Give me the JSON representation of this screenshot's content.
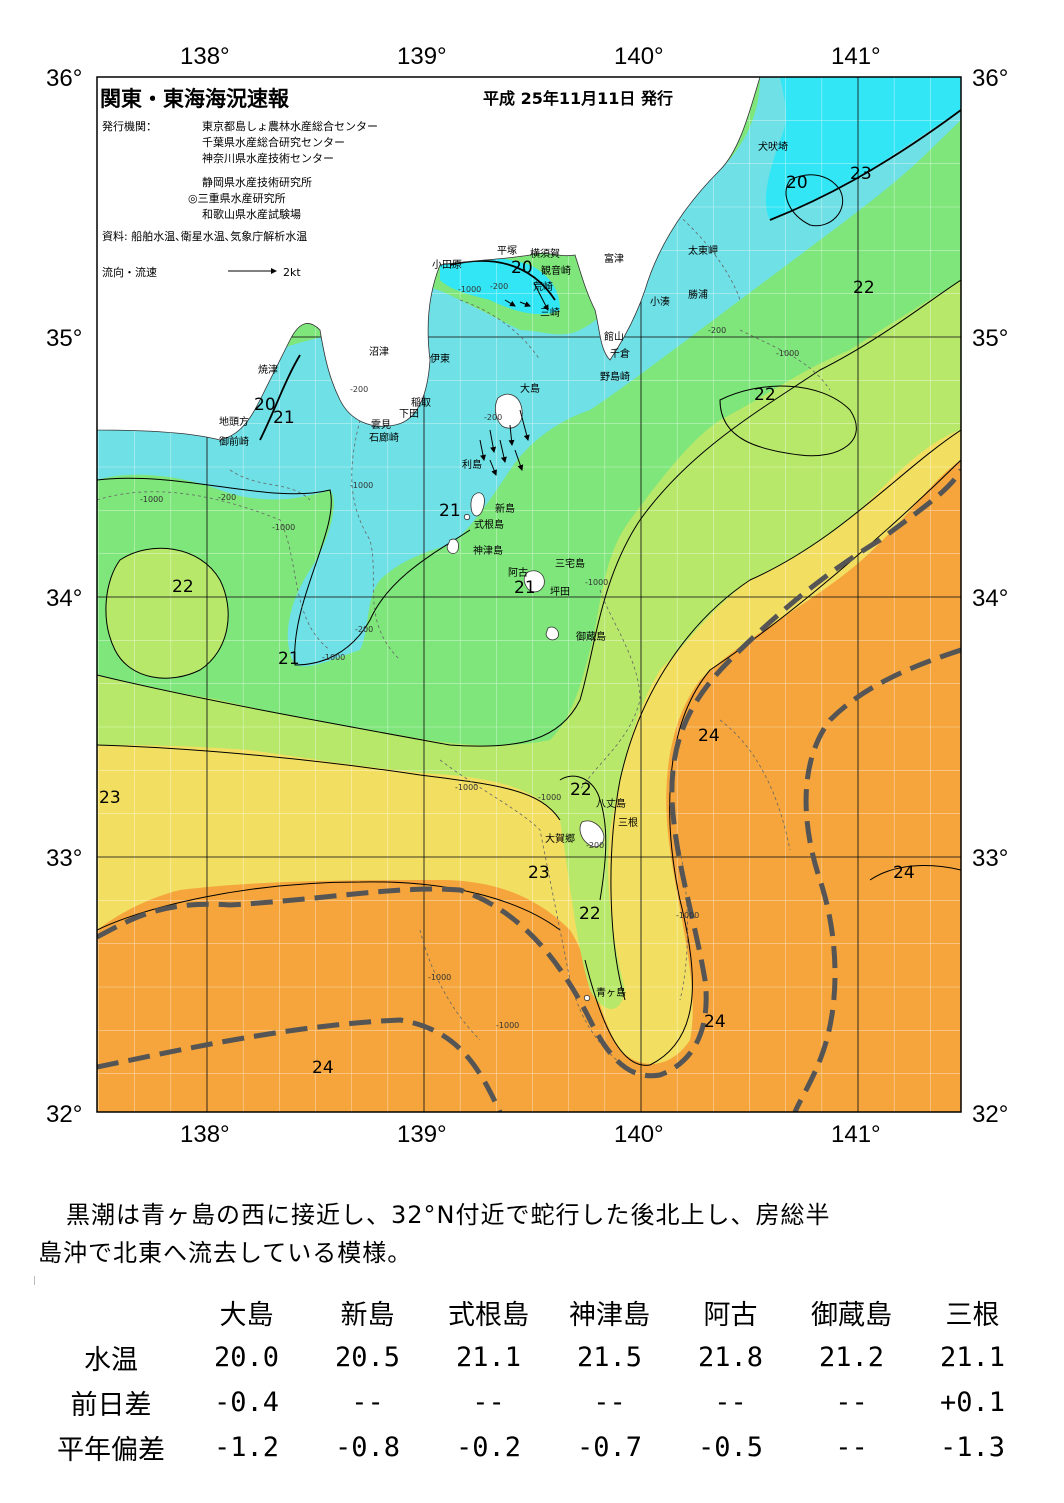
{
  "header": {
    "title": "関東・東海海況速報",
    "date": "平成 25年11月11日 発行",
    "publisher_label": "発行機関：",
    "publishers": [
      "東京都島しょ農林水産総合センター",
      "千葉県水産総合研究センター",
      "神奈川県水産技術センター",
      "静岡県水産技術研究所",
      "◎三重県水産研究所",
      "和歌山県水産試験場"
    ],
    "sources": "資料: 船舶水温､衛星水温､気象庁解析水温",
    "flow_legend": "流向・流速",
    "flow_scale": "2kt"
  },
  "axes": {
    "lon_ticks": [
      "138°",
      "139°",
      "140°",
      "141°"
    ],
    "lat_ticks": [
      "36°",
      "35°",
      "34°",
      "33°",
      "32°"
    ]
  },
  "places": [
    {
      "name": "犬吠埼"
    },
    {
      "name": "太東岬"
    },
    {
      "name": "勝浦"
    },
    {
      "name": "小湊"
    },
    {
      "name": "富津"
    },
    {
      "name": "館山"
    },
    {
      "name": "千倉"
    },
    {
      "name": "野島崎"
    },
    {
      "name": "横須賀"
    },
    {
      "name": "観音崎"
    },
    {
      "name": "荒崎"
    },
    {
      "name": "三崎"
    },
    {
      "name": "平塚"
    },
    {
      "name": "小田原"
    },
    {
      "name": "沼津"
    },
    {
      "name": "伊東"
    },
    {
      "name": "稲取"
    },
    {
      "name": "下田"
    },
    {
      "name": "雲見"
    },
    {
      "name": "石廊崎"
    },
    {
      "name": "焼津"
    },
    {
      "name": "地頭方"
    },
    {
      "name": "御前崎"
    },
    {
      "name": "大島"
    },
    {
      "name": "利島"
    },
    {
      "name": "新島"
    },
    {
      "name": "式根島"
    },
    {
      "name": "神津島"
    },
    {
      "name": "三宅島"
    },
    {
      "name": "阿古"
    },
    {
      "name": "坪田"
    },
    {
      "name": "御蔵島"
    },
    {
      "name": "八丈島"
    },
    {
      "name": "三根"
    },
    {
      "name": "大賀郷"
    },
    {
      "name": "青ヶ島"
    }
  ],
  "temp_labels": [
    "20",
    "23",
    "22",
    "22",
    "20",
    "21",
    "20",
    "21",
    "21",
    "22",
    "21",
    "24",
    "22",
    "23",
    "23",
    "22",
    "24",
    "24",
    "24"
  ],
  "depth_labels": [
    "-1000",
    "-200",
    "-200",
    "-1000",
    "-200",
    "-1000",
    "-200",
    "-1000",
    "-200",
    "-1000",
    "-1000",
    "-1000",
    "-1000",
    "-200",
    "-1000",
    "-1000",
    "-1000",
    "-200",
    "-1000"
  ],
  "colors": {
    "land": "#ffffff",
    "t_below_20": "#33e6f5",
    "t_20_21": "#6fe0e6",
    "t_21_22": "#7ee67a",
    "t_22_23": "#b7e86a",
    "t_23_24": "#f2df62",
    "t_24_plus": "#f5a53c",
    "kuroshio_axis": "#555555"
  },
  "summary": {
    "line1": "黒潮は青ヶ島の西に接近し、32°N付近で蛇行した後北上し、房総半",
    "line2": "島沖で北東へ流去している模様。"
  },
  "obs_table": {
    "columns": [
      "大島",
      "新島",
      "式根島",
      "神津島",
      "阿古",
      "御蔵島",
      "三根"
    ],
    "rows": [
      {
        "label": "水温",
        "values": [
          "20.0",
          "20.5",
          "21.1",
          "21.5",
          "21.8",
          "21.2",
          "21.1"
        ]
      },
      {
        "label": "前日差",
        "values": [
          "-0.4",
          "--",
          "--",
          "--",
          "--",
          "--",
          "+0.1"
        ]
      },
      {
        "label": "平年偏差",
        "values": [
          "-1.2",
          "-0.8",
          "-0.2",
          "-0.7",
          "-0.5",
          "--",
          "-1.3"
        ]
      }
    ]
  }
}
